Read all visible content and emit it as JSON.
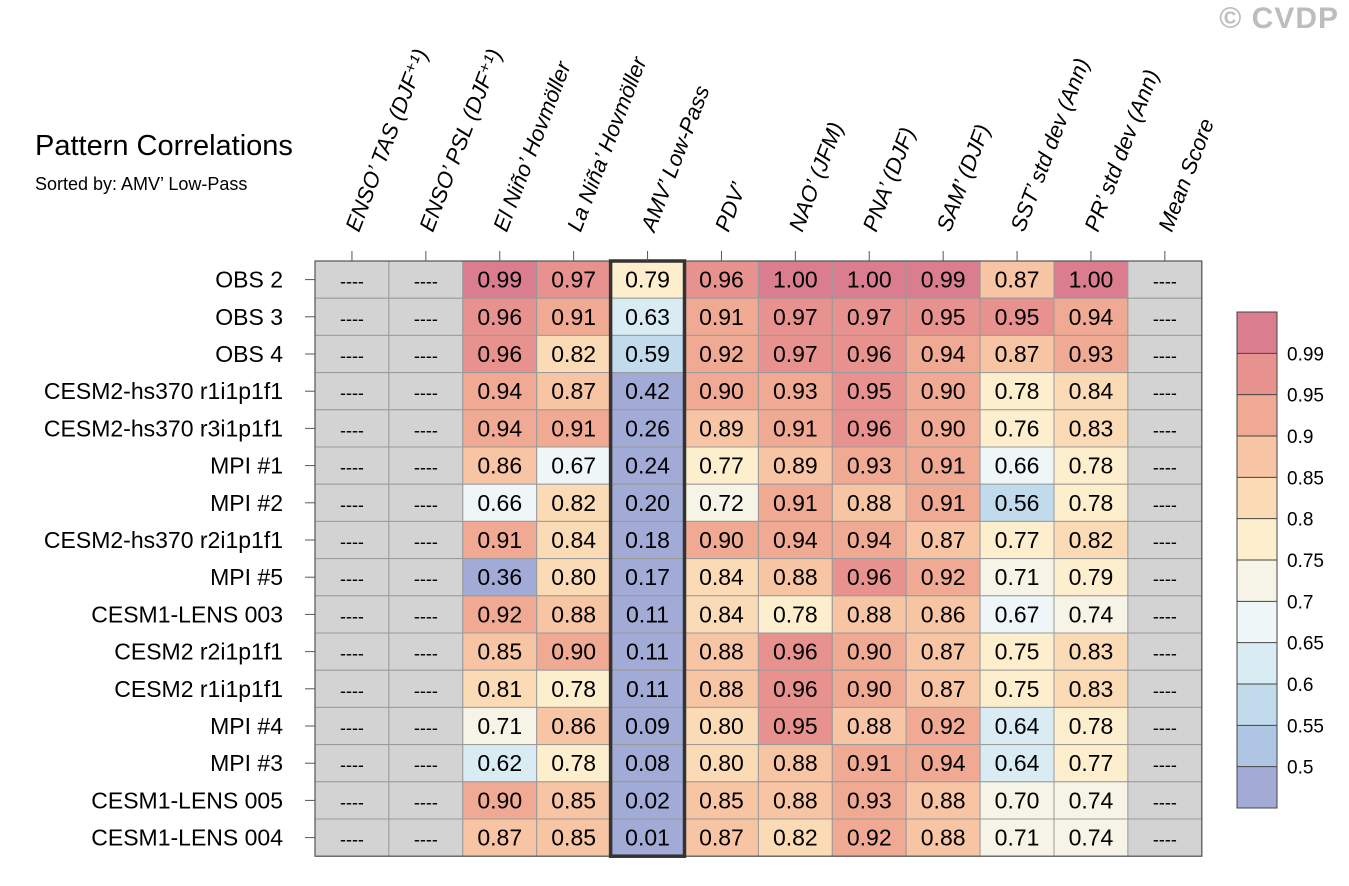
{
  "watermark": "© CVDP",
  "chart_data": {
    "type": "heatmap",
    "title": "Pattern Correlations",
    "subtitle": "Sorted by: AMV’ Low-Pass",
    "columns": [
      "ENSO’ TAS (DJF⁺¹)",
      "ENSO’ PSL (DJF⁺¹)",
      "El Niño’ Hovmöller",
      "La Niña’ Hovmöller",
      "AMV’ Low-Pass",
      "PDV’",
      "NAO’ (JFM)",
      "PNA’ (DJF)",
      "SAM’ (DJF)",
      "SST’ std dev (Ann)",
      "PR’ std dev (Ann)",
      "Mean Score"
    ],
    "rows": [
      "OBS 2",
      "OBS 3",
      "OBS 4",
      "CESM2-hs370 r1i1p1f1",
      "CESM2-hs370 r3i1p1f1",
      "MPI #1",
      "MPI #2",
      "CESM2-hs370 r2i1p1f1",
      "MPI #5",
      "CESM1-LENS 003",
      "CESM2 r2i1p1f1",
      "CESM2 r1i1p1f1",
      "MPI #4",
      "MPI #3",
      "CESM1-LENS 005",
      "CESM1-LENS 004"
    ],
    "values": [
      [
        null,
        null,
        0.99,
        0.97,
        0.79,
        0.96,
        1.0,
        1.0,
        0.99,
        0.87,
        1.0,
        null
      ],
      [
        null,
        null,
        0.96,
        0.91,
        0.63,
        0.91,
        0.97,
        0.97,
        0.95,
        0.95,
        0.94,
        null
      ],
      [
        null,
        null,
        0.96,
        0.82,
        0.59,
        0.92,
        0.97,
        0.96,
        0.94,
        0.87,
        0.93,
        null
      ],
      [
        null,
        null,
        0.94,
        0.87,
        0.42,
        0.9,
        0.93,
        0.95,
        0.9,
        0.78,
        0.84,
        null
      ],
      [
        null,
        null,
        0.94,
        0.91,
        0.26,
        0.89,
        0.91,
        0.96,
        0.9,
        0.76,
        0.83,
        null
      ],
      [
        null,
        null,
        0.86,
        0.67,
        0.24,
        0.77,
        0.89,
        0.93,
        0.91,
        0.66,
        0.78,
        null
      ],
      [
        null,
        null,
        0.66,
        0.82,
        0.2,
        0.72,
        0.91,
        0.88,
        0.91,
        0.56,
        0.78,
        null
      ],
      [
        null,
        null,
        0.91,
        0.84,
        0.18,
        0.9,
        0.94,
        0.94,
        0.87,
        0.77,
        0.82,
        null
      ],
      [
        null,
        null,
        0.36,
        0.8,
        0.17,
        0.84,
        0.88,
        0.96,
        0.92,
        0.71,
        0.79,
        null
      ],
      [
        null,
        null,
        0.92,
        0.88,
        0.11,
        0.84,
        0.78,
        0.88,
        0.86,
        0.67,
        0.74,
        null
      ],
      [
        null,
        null,
        0.85,
        0.9,
        0.11,
        0.88,
        0.96,
        0.9,
        0.87,
        0.75,
        0.83,
        null
      ],
      [
        null,
        null,
        0.81,
        0.78,
        0.11,
        0.88,
        0.96,
        0.9,
        0.87,
        0.75,
        0.83,
        null
      ],
      [
        null,
        null,
        0.71,
        0.86,
        0.09,
        0.8,
        0.95,
        0.88,
        0.92,
        0.64,
        0.78,
        null
      ],
      [
        null,
        null,
        0.62,
        0.78,
        0.08,
        0.8,
        0.88,
        0.91,
        0.94,
        0.64,
        0.77,
        null
      ],
      [
        null,
        null,
        0.9,
        0.85,
        0.02,
        0.85,
        0.88,
        0.93,
        0.88,
        0.7,
        0.74,
        null
      ],
      [
        null,
        null,
        0.87,
        0.85,
        0.01,
        0.87,
        0.82,
        0.92,
        0.88,
        0.71,
        0.74,
        null
      ]
    ],
    "missing_label": "----",
    "missing_color": "#d3d3d3",
    "highlighted_column": "AMV’ Low-Pass",
    "colorbar": {
      "levels": [
        0.5,
        0.55,
        0.6,
        0.65,
        0.7,
        0.75,
        0.8,
        0.85,
        0.9,
        0.95,
        0.99
      ],
      "labels": [
        "0.5",
        "0.55",
        "0.6",
        "0.65",
        "0.7",
        "0.75",
        "0.8",
        "0.85",
        "0.9",
        "0.95",
        "0.99"
      ],
      "colors": [
        "#a1abd6",
        "#aec6e3",
        "#c1dbec",
        "#d9ecf3",
        "#eef6f8",
        "#f5f4e6",
        "#fdefcd",
        "#fbdbb6",
        "#f7c4a4",
        "#f0a993",
        "#e8928f",
        "#d97d8f"
      ]
    }
  }
}
